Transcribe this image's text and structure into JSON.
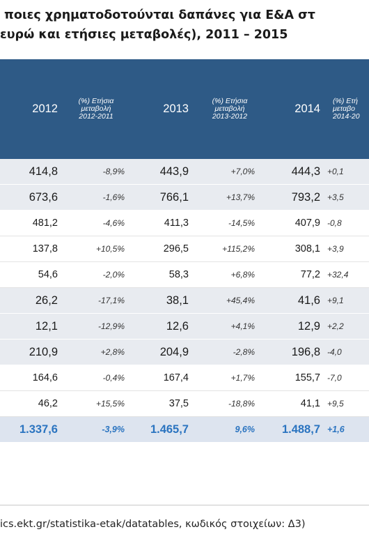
{
  "title": {
    "line1": "ποιες χρηματοδοτούνται δαπάνες για Ε&Α στ",
    "line2": " ευρώ και ετήσιες μεταβολές), 2011 – 2015"
  },
  "header": {
    "y2012": "2012",
    "chg1": [
      "(%) Ετήσια",
      "μεταβολή",
      "2012-2011"
    ],
    "y2013": "2013",
    "chg2": [
      "(%) Ετήσια",
      "μεταβολή",
      "2013-2012"
    ],
    "y2014": "2014",
    "chg3": [
      "(%) Ετή",
      "μεταβο",
      "2014-20"
    ]
  },
  "rows": [
    {
      "v12": "414,8",
      "c1": "-8,9%",
      "v13": "443,9",
      "c2": "+7,0%",
      "v14": "444,3",
      "c3": "+0,1"
    },
    {
      "v12": "673,6",
      "c1": "-1,6%",
      "v13": "766,1",
      "c2": "+13,7%",
      "v14": "793,2",
      "c3": "+3,5"
    },
    {
      "v12": "481,2",
      "c1": "-4,6%",
      "v13": "411,3",
      "c2": "-14,5%",
      "v14": "407,9",
      "c3": "-0,8"
    },
    {
      "v12": "137,8",
      "c1": "+10,5%",
      "v13": "296,5",
      "c2": "+115,2%",
      "v14": "308,1",
      "c3": "+3,9"
    },
    {
      "v12": "54,6",
      "c1": "-2,0%",
      "v13": "58,3",
      "c2": "+6,8%",
      "v14": "77,2",
      "c3": "+32,4"
    },
    {
      "v12": "26,2",
      "c1": "-17,1%",
      "v13": "38,1",
      "c2": "+45,4%",
      "v14": "41,6",
      "c3": "+9,1"
    },
    {
      "v12": "12,1",
      "c1": "-12,9%",
      "v13": "12,6",
      "c2": "+4,1%",
      "v14": "12,9",
      "c3": "+2,2"
    },
    {
      "v12": "210,9",
      "c1": "+2,8%",
      "v13": "204,9",
      "c2": "-2,8%",
      "v14": "196,8",
      "c3": "-4,0"
    },
    {
      "v12": "164,6",
      "c1": "-0,4%",
      "v13": "167,4",
      "c2": "+1,7%",
      "v14": "155,7",
      "c3": "-7,0"
    },
    {
      "v12": "46,2",
      "c1": "+15,5%",
      "v13": "37,5",
      "c2": "-18,8%",
      "v14": "41,1",
      "c3": "+9,5"
    },
    {
      "v12": "1.337,6",
      "c1": "-3,9%",
      "v13": "1.465,7",
      "c2": "9,6%",
      "v14": "1.488,7",
      "c3": "+1,6"
    }
  ],
  "source": "ics.ekt.gr/statistika-etak/datatables, κωδικός στοιχείων: Δ3)"
}
